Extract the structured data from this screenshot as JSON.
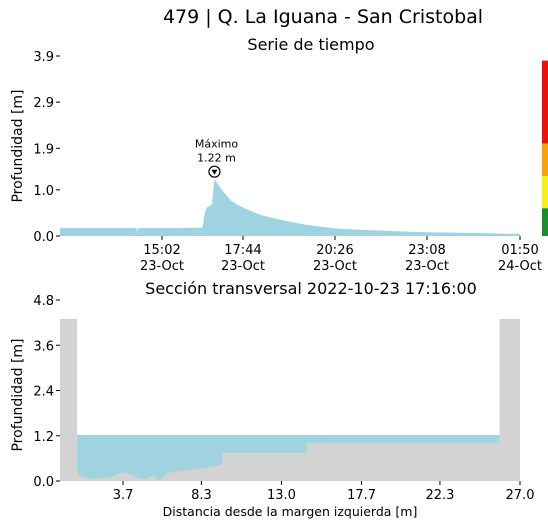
{
  "page": {
    "title": "479 | Q. La Iguana - San Cristobal"
  },
  "chart_data": [
    {
      "type": "area",
      "title": "Serie de tiempo",
      "ylabel": "Profundidad [m]",
      "xlabel": "",
      "x_ticks": [
        "15:02\n23-Oct",
        "17:44\n23-Oct",
        "20:26\n23-Oct",
        "23:08\n23-Oct",
        "01:50\n24-Oct"
      ],
      "y_ticks": [
        0.0,
        1.0,
        1.9,
        2.9,
        3.9
      ],
      "ylim": [
        0,
        3.9
      ],
      "x_unit": "minutes since 12:20 23-Oct",
      "xlim": [
        0,
        810
      ],
      "series": [
        {
          "x": [
            0,
            135,
            136,
            137,
            138,
            250,
            252,
            255,
            259,
            264,
            268,
            270,
            272,
            275,
            279,
            285,
            292,
            300,
            312,
            325,
            340,
            355,
            370,
            385,
            400,
            430,
            460,
            490,
            520,
            560,
            600,
            650,
            700,
            750,
            790,
            810
          ],
          "values": [
            0.17,
            0.17,
            0.05,
            0.17,
            0.17,
            0.18,
            0.25,
            0.5,
            0.62,
            0.65,
            0.7,
            1.0,
            1.22,
            1.18,
            1.1,
            1.0,
            0.9,
            0.78,
            0.68,
            0.6,
            0.52,
            0.45,
            0.4,
            0.36,
            0.32,
            0.25,
            0.2,
            0.16,
            0.14,
            0.12,
            0.1,
            0.08,
            0.07,
            0.06,
            0.05,
            0.05
          ]
        }
      ],
      "annotation": {
        "label": "Máximo",
        "value_label": "1.22 m",
        "x": 272,
        "y": 1.22
      },
      "colors": {
        "fill": "#9fd3e0",
        "scale_red": "#e8140c",
        "scale_orange": "#f6a40a",
        "scale_yellow": "#f7f01e",
        "scale_green": "#1b8f2e"
      },
      "scale_bands": [
        {
          "level": "red",
          "from": 2.0,
          "to": 3.8
        },
        {
          "level": "orange",
          "from": 1.3,
          "to": 2.0
        },
        {
          "level": "yellow",
          "from": 0.6,
          "to": 1.3
        },
        {
          "level": "green",
          "from": 0.0,
          "to": 0.6
        }
      ]
    },
    {
      "type": "area",
      "title": "Sección transversal 2022-10-23 17:16:00",
      "xlabel": "Distancia desde la margen izquierda [m]",
      "ylabel": "Profundidad [m]",
      "x_ticks": [
        3.7,
        8.3,
        13.0,
        17.7,
        22.3,
        27.0
      ],
      "y_ticks": [
        0.0,
        1.2,
        2.4,
        3.6,
        4.8
      ],
      "xlim": [
        0,
        27.0
      ],
      "ylim": [
        0,
        4.8
      ],
      "water_level": 1.22,
      "water_x_range": [
        1.0,
        25.8
      ],
      "bed_profile": {
        "x": [
          0,
          1.0,
          1.0,
          1.2,
          2.0,
          3.0,
          3.7,
          4.5,
          5.0,
          5.5,
          5.8,
          6.2,
          6.8,
          8.0,
          9.5,
          9.5,
          14.5,
          14.5,
          25.8,
          25.8,
          27.0
        ],
        "y": [
          4.3,
          4.3,
          0.28,
          0.12,
          0.05,
          0.1,
          0.25,
          0.1,
          0.05,
          0.15,
          0.0,
          0.2,
          0.25,
          0.32,
          0.42,
          0.75,
          0.75,
          1.0,
          1.0,
          4.3,
          4.3
        ]
      },
      "colors": {
        "water": "#9fd3e0",
        "ground": "#d3d3d3"
      }
    }
  ]
}
